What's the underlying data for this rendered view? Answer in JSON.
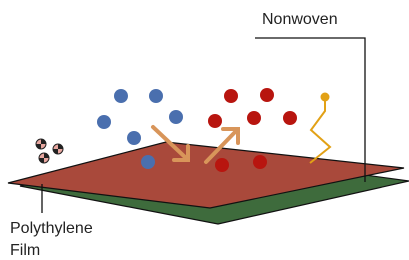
{
  "labels": {
    "nonwoven": "Nonwoven",
    "film": [
      "Polythylene",
      "Film"
    ]
  }
}
